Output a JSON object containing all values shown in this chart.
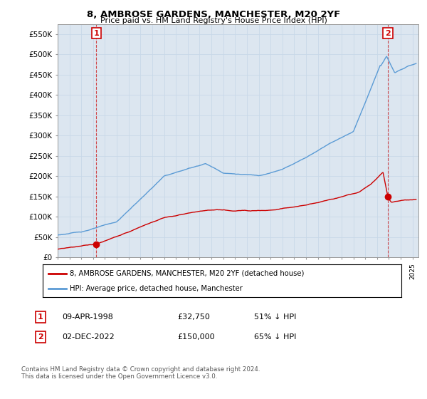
{
  "title": "8, AMBROSE GARDENS, MANCHESTER, M20 2YF",
  "subtitle": "Price paid vs. HM Land Registry's House Price Index (HPI)",
  "ylim": [
    0,
    575000
  ],
  "xlim_start": 1995.0,
  "xlim_end": 2025.5,
  "sale1_date": 1998.27,
  "sale1_price": 32750,
  "sale1_label": "1",
  "sale2_date": 2022.92,
  "sale2_price": 150000,
  "sale2_label": "2",
  "legend_line1": "8, AMBROSE GARDENS, MANCHESTER, M20 2YF (detached house)",
  "legend_line2": "HPI: Average price, detached house, Manchester",
  "table_row1": [
    "1",
    "09-APR-1998",
    "£32,750",
    "51% ↓ HPI"
  ],
  "table_row2": [
    "2",
    "02-DEC-2022",
    "£150,000",
    "65% ↓ HPI"
  ],
  "footnote": "Contains HM Land Registry data © Crown copyright and database right 2024.\nThis data is licensed under the Open Government Licence v3.0.",
  "hpi_color": "#5b9bd5",
  "sale_color": "#cc0000",
  "grid_color": "#c8d8e8",
  "background_color": "#dce6f0",
  "plot_bg_color": "#dce6f0"
}
